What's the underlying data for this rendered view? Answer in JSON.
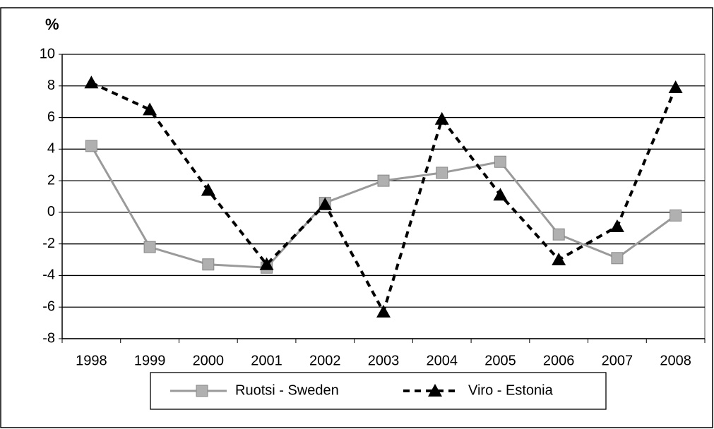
{
  "chart_data": {
    "type": "line",
    "y_label": "%",
    "categories": [
      "1998",
      "1999",
      "2000",
      "2001",
      "2002",
      "2003",
      "2004",
      "2005",
      "2006",
      "2007",
      "2008"
    ],
    "series": [
      {
        "name": "Ruotsi - Sweden",
        "color": "#9a9a9a",
        "marker": "square",
        "dash": "solid",
        "values": [
          4.2,
          -2.2,
          -3.3,
          -3.5,
          0.6,
          2.0,
          2.5,
          3.2,
          -1.4,
          -2.9,
          -0.2
        ]
      },
      {
        "name": "Viro - Estonia",
        "color": "#000000",
        "marker": "triangle",
        "dash": "dashed",
        "values": [
          8.2,
          6.5,
          1.4,
          -3.3,
          0.5,
          -6.3,
          5.9,
          1.1,
          -3.0,
          -0.9,
          7.9
        ]
      }
    ],
    "ylim": [
      -8,
      10
    ],
    "yticks": [
      -8,
      -6,
      -4,
      -2,
      0,
      2,
      4,
      6,
      8,
      10
    ],
    "grid": true,
    "legend": "bottom"
  }
}
